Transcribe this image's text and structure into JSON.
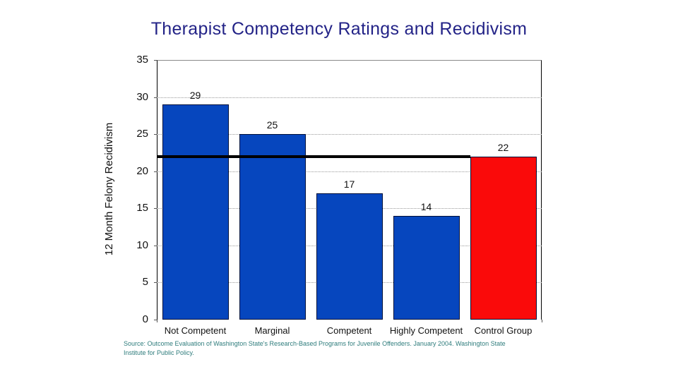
{
  "slide": {
    "title": "Therapist Competency Ratings and Recidivism",
    "source_line1": "Source: Outcome Evaluation of Washington State's Research-Based Programs for Juvenile Offenders. January 2004. Washington State",
    "source_line2": "Institute for Public Policy."
  },
  "chart_data": {
    "type": "bar",
    "title": "Therapist Competency Ratings and Recidivism",
    "categories": [
      "Not Competent",
      "Marginal",
      "Competent",
      "Highly Competent",
      "Control Group"
    ],
    "values": [
      29,
      25,
      17,
      14,
      22
    ],
    "data_labels": [
      "29",
      "25",
      "17",
      "14",
      "22"
    ],
    "bar_colors": [
      "#0646BE",
      "#0646BE",
      "#0646BE",
      "#0646BE",
      "#FA0A0A"
    ],
    "xlabel": "",
    "ylabel": "12 Month Felony Recidivism",
    "ylim": [
      0,
      35
    ],
    "yticks": [
      0,
      5,
      10,
      15,
      20,
      25,
      30,
      35
    ],
    "grid": "horizontal dotted, behind bars",
    "legend": "none",
    "reference_line": {
      "value": 22,
      "label": "",
      "color": "#000000",
      "note": "black line at control-group level, spans from y-axis to left edge of red bar"
    },
    "colors": {
      "bar_blue": "#0646BE",
      "bar_red": "#FA0A0A",
      "bar_border": "#00103A",
      "title_text": "#232387",
      "axis_text": "#111111",
      "source_text": "#2E7C7C",
      "gridline": "#9A9A9A",
      "background": "#FFFFFF"
    }
  }
}
